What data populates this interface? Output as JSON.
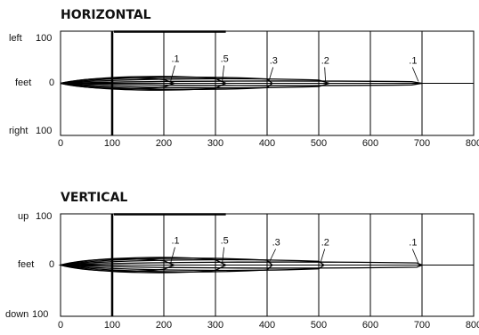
{
  "chart_data": [
    {
      "type": "line",
      "title": "HORIZONTAL",
      "y_tick_labels": [
        "left",
        "feet",
        "right"
      ],
      "y_tick_values": [
        "100",
        "0",
        "100"
      ],
      "x_ticks": [
        0,
        100,
        200,
        300,
        400,
        500,
        600,
        700,
        800
      ],
      "x_tick_labels": [
        "0",
        "100",
        "200",
        "300",
        "400",
        "500",
        "600",
        "700",
        "800"
      ],
      "xlim": [
        0,
        800
      ],
      "ylim": [
        -100,
        100
      ],
      "grid": true,
      "series": [
        {
          "name": ".1",
          "x": [
            0,
            680,
            700
          ],
          "half_width": 3,
          "label_x": 685,
          "label_y": 22
        },
        {
          "name": ".2",
          "x": [
            0,
            500,
            520
          ],
          "half_width": 6,
          "label_x": 515,
          "label_y": 22
        },
        {
          "name": ".3",
          "x": [
            0,
            400,
            410
          ],
          "half_width": 8,
          "label_x": 415,
          "label_y": 22
        },
        {
          "name": ".5",
          "x": [
            0,
            300,
            320
          ],
          "half_width": 9,
          "label_x": 320,
          "label_y": 24
        },
        {
          "name": ".1",
          "x": [
            0,
            200,
            220
          ],
          "half_width": 7,
          "label_x": 225,
          "label_y": 24
        }
      ]
    },
    {
      "type": "line",
      "title": "VERTICAL",
      "y_tick_labels": [
        "up",
        "feet",
        "down"
      ],
      "y_tick_values": [
        "100",
        "0",
        "100"
      ],
      "x_ticks": [
        0,
        100,
        200,
        300,
        400,
        500,
        600,
        700,
        800
      ],
      "x_tick_labels": [
        "0",
        "100",
        "200",
        "300",
        "400",
        "500",
        "600",
        "700",
        "800"
      ],
      "xlim": [
        0,
        800
      ],
      "ylim": [
        -100,
        100
      ],
      "grid": true,
      "series": [
        {
          "name": ".1",
          "x": [
            0,
            690,
            700
          ],
          "half_width": 4,
          "label_x": 685,
          "label_y": 22
        },
        {
          "name": ".2",
          "x": [
            0,
            500,
            510
          ],
          "half_width": 7,
          "label_x": 515,
          "label_y": 22
        },
        {
          "name": ".3",
          "x": [
            0,
            400,
            410
          ],
          "half_width": 9,
          "label_x": 420,
          "label_y": 22
        },
        {
          "name": ".5",
          "x": [
            0,
            300,
            320
          ],
          "half_width": 10,
          "label_x": 320,
          "label_y": 24
        },
        {
          "name": ".1",
          "x": [
            0,
            200,
            220
          ],
          "half_width": 8,
          "label_x": 225,
          "label_y": 24
        }
      ]
    }
  ]
}
